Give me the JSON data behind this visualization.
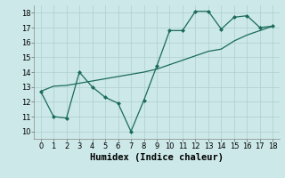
{
  "x": [
    0,
    1,
    2,
    3,
    4,
    5,
    6,
    7,
    8,
    9,
    10,
    11,
    12,
    13,
    14,
    15,
    16,
    17,
    18
  ],
  "y_zigzag": [
    12.7,
    11.0,
    10.9,
    14.0,
    13.0,
    12.3,
    11.9,
    10.0,
    12.1,
    14.4,
    16.8,
    16.8,
    18.1,
    18.1,
    16.9,
    17.7,
    17.8,
    17.0,
    17.1
  ],
  "y_trend": [
    12.7,
    13.05,
    13.1,
    13.25,
    13.4,
    13.55,
    13.7,
    13.85,
    14.0,
    14.2,
    14.5,
    14.8,
    15.1,
    15.4,
    15.55,
    16.1,
    16.5,
    16.8,
    17.1
  ],
  "line_color": "#1a6b5a",
  "bg_color": "#cce8e8",
  "grid_color": "#b0cfcf",
  "xlabel": "Humidex (Indice chaleur)",
  "ylim": [
    9.5,
    18.5
  ],
  "xlim": [
    -0.5,
    18.5
  ],
  "yticks": [
    10,
    11,
    12,
    13,
    14,
    15,
    16,
    17,
    18
  ],
  "xticks": [
    0,
    1,
    2,
    3,
    4,
    5,
    6,
    7,
    8,
    9,
    10,
    11,
    12,
    13,
    14,
    15,
    16,
    17,
    18
  ],
  "tick_fontsize": 6,
  "xlabel_fontsize": 7.5
}
